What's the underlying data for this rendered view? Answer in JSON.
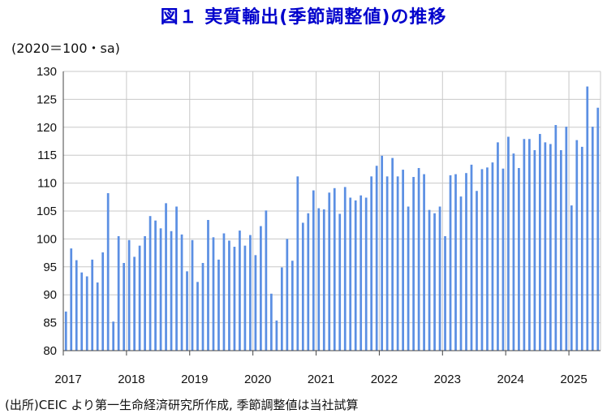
{
  "title": "図１ 実質輸出(季節調整値)の推移",
  "unit_label": "(2020＝100・sa)",
  "source_note": "(出所)CEIC より第一生命経済研究所作成, 季節調整値は当社試算",
  "colors": {
    "bar": "#5b8fe3",
    "grid": "#c8c8c8",
    "axis": "#444444"
  },
  "chart_data": {
    "type": "bar",
    "title": "図１ 実質輸出(季節調整値)の推移",
    "ylabel": "(2020＝100・sa)",
    "xlabel": "",
    "ylim": [
      80,
      130
    ],
    "yticks": [
      80,
      85,
      90,
      95,
      100,
      105,
      110,
      115,
      120,
      125,
      130
    ],
    "xtick_labels": [
      "2017",
      "2018",
      "2019",
      "2020",
      "2021",
      "2022",
      "2023",
      "2024",
      "2025"
    ],
    "grid": true,
    "frequency": "monthly",
    "period_start": "2017-01",
    "period_end": "2025-06",
    "values": [
      87.0,
      98.3,
      96.2,
      94.0,
      93.3,
      96.3,
      92.2,
      97.6,
      108.2,
      85.2,
      100.5,
      95.7,
      99.8,
      96.8,
      98.8,
      100.5,
      104.1,
      103.3,
      101.9,
      106.4,
      101.4,
      105.8,
      100.8,
      94.2,
      99.8,
      92.3,
      95.7,
      103.4,
      100.3,
      96.3,
      101.0,
      99.7,
      98.6,
      101.5,
      98.8,
      100.7,
      97.1,
      102.3,
      105.1,
      90.2,
      85.4,
      94.9,
      100.0,
      96.1,
      111.2,
      102.9,
      104.6,
      108.7,
      105.5,
      105.3,
      108.3,
      109.1,
      104.5,
      109.3,
      107.4,
      106.9,
      107.8,
      107.4,
      111.2,
      113.1,
      114.9,
      111.2,
      114.5,
      111.2,
      112.4,
      105.8,
      111.1,
      112.7,
      111.6,
      105.2,
      104.6,
      105.8,
      100.5,
      111.4,
      111.6,
      107.6,
      111.8,
      113.3,
      108.6,
      112.5,
      112.8,
      113.7,
      117.3,
      112.6,
      118.3,
      115.3,
      112.7,
      117.9,
      117.9,
      115.9,
      118.8,
      117.3,
      117.0,
      120.4,
      115.9,
      120.1,
      106.0,
      117.7,
      116.5,
      127.3,
      120.1,
      123.5
    ]
  }
}
